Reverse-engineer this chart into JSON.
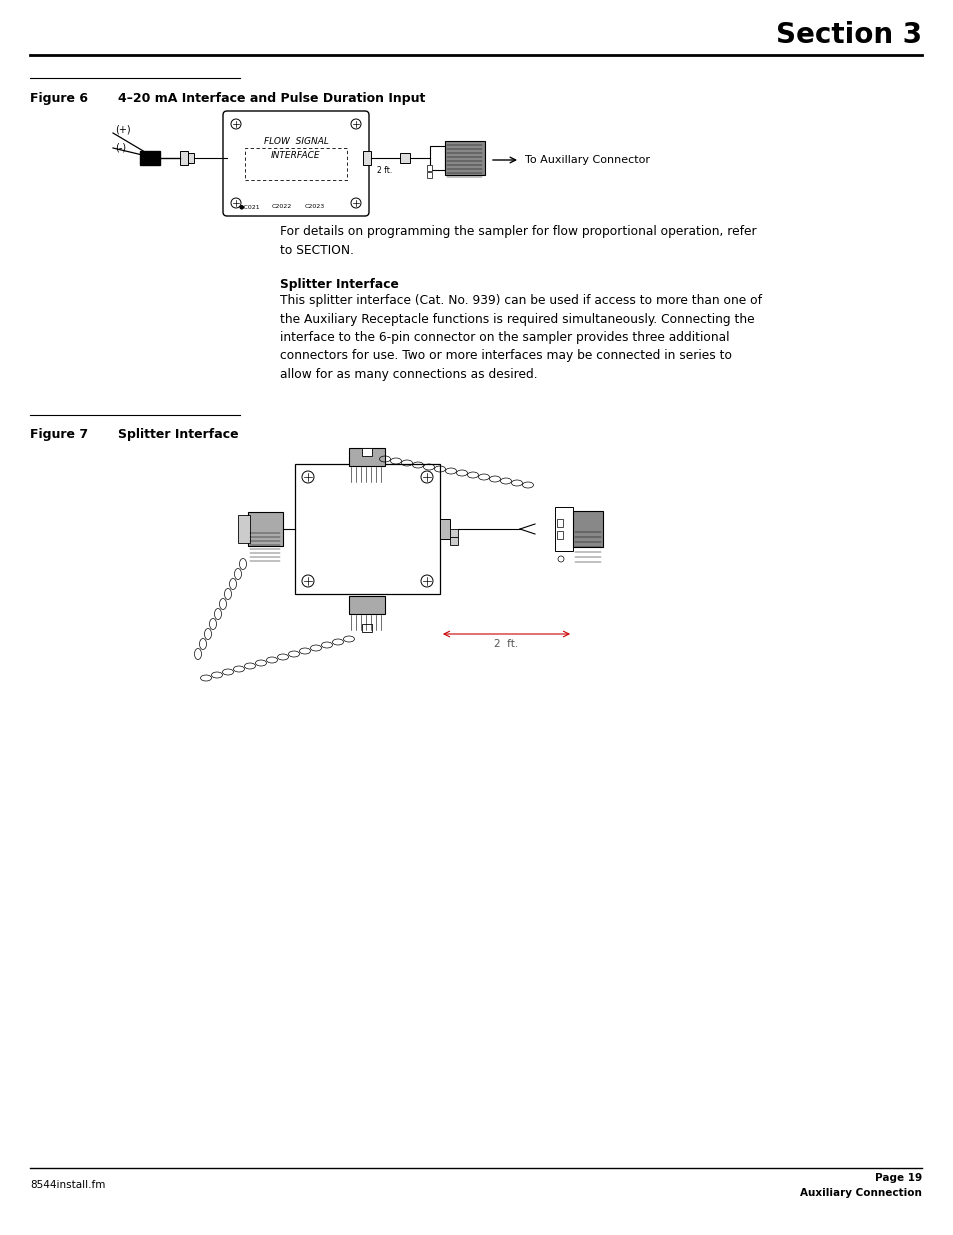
{
  "page_title": "Section 3",
  "figure6_label": "Figure 6",
  "figure6_title": "4–20 mA Interface and Pulse Duration Input",
  "figure7_label": "Figure 7",
  "figure7_title": "Splitter Interface",
  "para1": "For details on programming the sampler for flow proportional operation, refer\nto SECTION.",
  "splitter_header": "Splitter Interface",
  "splitter_body": "This splitter interface (Cat. No. 939) can be used if access to more than one of\nthe Auxiliary Receptacle functions is required simultaneously. Connecting the\ninterface to the 6-pin connector on the sampler provides three additional\nconnectors for use. Two or more interfaces may be connected in series to\nallow for as many connections as desired.",
  "footer_left": "8544install.fm",
  "footer_right_top": "Page 19",
  "footer_right_bottom": "Auxiliary Connection",
  "bg_color": "#ffffff",
  "text_color": "#000000"
}
